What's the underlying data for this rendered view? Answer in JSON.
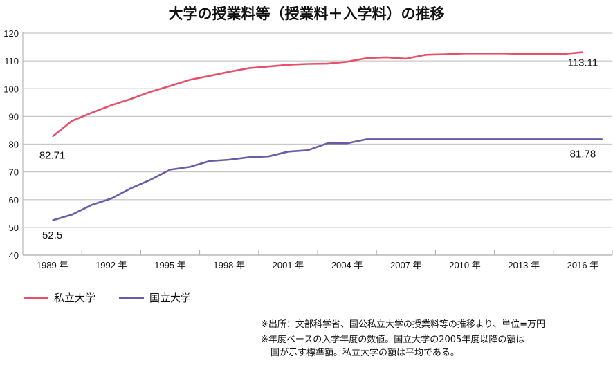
{
  "chart_data": {
    "type": "line",
    "title": "大学の授業料等（授業料＋入学料）の推移",
    "xlabel": "",
    "ylabel": "",
    "ylim": [
      40,
      120
    ],
    "yticks": [
      40,
      50,
      60,
      70,
      80,
      90,
      100,
      110,
      120
    ],
    "xlim": [
      1988,
      2017
    ],
    "xtick_labels": [
      {
        "year": 1989,
        "label": "1989 年"
      },
      {
        "year": 1992,
        "label": "1992 年"
      },
      {
        "year": 1995,
        "label": "1995 年"
      },
      {
        "year": 1998,
        "label": "1998 年"
      },
      {
        "year": 2001,
        "label": "2001 年"
      },
      {
        "year": 2004,
        "label": "2004 年"
      },
      {
        "year": 2007,
        "label": "2007 年"
      },
      {
        "year": 2010,
        "label": "2010 年"
      },
      {
        "year": 2013,
        "label": "2013 年"
      },
      {
        "year": 2016,
        "label": "2016 年"
      }
    ],
    "grid": true,
    "legend_position": "bottom-left",
    "series": [
      {
        "name": "私立大学",
        "color": "#e8506a",
        "x": [
          1989,
          1990,
          1991,
          1992,
          1993,
          1994,
          1995,
          1996,
          1997,
          1998,
          1999,
          2000,
          2001,
          2002,
          2003,
          2004,
          2005,
          2006,
          2007,
          2008,
          2009,
          2010,
          2011,
          2012,
          2013,
          2014,
          2015,
          2016
        ],
        "values": [
          82.71,
          88.4,
          91.3,
          94.0,
          96.3,
          98.9,
          101.0,
          103.2,
          104.6,
          106.1,
          107.4,
          108.0,
          108.6,
          108.9,
          109.0,
          109.7,
          111.0,
          111.3,
          110.8,
          112.2,
          112.4,
          112.7,
          112.7,
          112.7,
          112.5,
          112.6,
          112.5,
          113.11
        ],
        "labels": [
          {
            "x": 1989,
            "text": "82.71"
          },
          {
            "x": 2016,
            "text": "113.11"
          }
        ]
      },
      {
        "name": "国立大学",
        "color": "#6a5aa8",
        "x": [
          1989,
          1990,
          1991,
          1992,
          1993,
          1994,
          1995,
          1996,
          1997,
          1998,
          1999,
          2000,
          2001,
          2002,
          2003,
          2004,
          2005,
          2006,
          2007,
          2008,
          2009,
          2010,
          2011,
          2012,
          2013,
          2014,
          2015,
          2016,
          2017
        ],
        "values": [
          52.5,
          54.6,
          58.1,
          60.4,
          64.1,
          67.2,
          70.8,
          71.8,
          73.9,
          74.4,
          75.3,
          75.6,
          77.3,
          77.8,
          80.3,
          80.3,
          81.78,
          81.78,
          81.78,
          81.78,
          81.78,
          81.78,
          81.78,
          81.78,
          81.78,
          81.78,
          81.78,
          81.78,
          81.78
        ],
        "labels": [
          {
            "x": 1989,
            "text": "52.5"
          },
          {
            "x": 2016,
            "text": "81.78"
          }
        ]
      }
    ],
    "notes": [
      "※出所：文部科学省、国公私立大学の授業料等の推移より、単位=万円",
      "※年度ベースの入学年度の数値。国立大学の2005年度以降の額は",
      "国が示す標準額。私立大学の額は平均である。"
    ]
  }
}
